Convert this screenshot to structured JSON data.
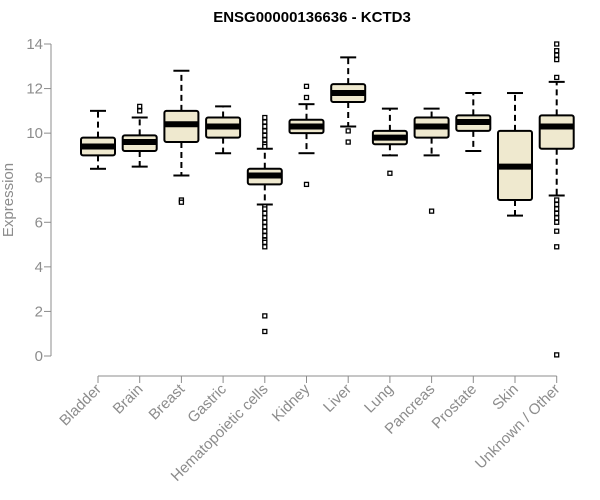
{
  "chart_data": {
    "type": "boxplot",
    "title": "ENSG00000136636 - KCTD3",
    "ylabel": "Expression",
    "xlabel": "",
    "ylim": [
      0,
      14
    ],
    "yticks": [
      0,
      2,
      4,
      6,
      8,
      10,
      12,
      14
    ],
    "grid": false,
    "legend": "none",
    "colors": {
      "box_fill": "#efe9cf",
      "box_stroke": "#000000",
      "axis": "#8c8c8c",
      "title": "#000000"
    },
    "categories": [
      "Bladder",
      "Brain",
      "Breast",
      "Gastric",
      "Hematopoietic cells",
      "Kidney",
      "Liver",
      "Lung",
      "Pancreas",
      "Prostate",
      "Skin",
      "Unknown / Other"
    ],
    "boxes": [
      {
        "category": "Bladder",
        "whisker_low": 8.4,
        "q1": 9.0,
        "median": 9.4,
        "q3": 9.8,
        "whisker_high": 11.0,
        "outliers": []
      },
      {
        "category": "Brain",
        "whisker_low": 8.5,
        "q1": 9.2,
        "median": 9.6,
        "q3": 9.9,
        "whisker_high": 10.7,
        "outliers": [
          11.0,
          11.2
        ]
      },
      {
        "category": "Breast",
        "whisker_low": 8.1,
        "q1": 9.6,
        "median": 10.4,
        "q3": 11.0,
        "whisker_high": 12.8,
        "outliers": [
          7.0,
          6.9
        ]
      },
      {
        "category": "Gastric",
        "whisker_low": 9.1,
        "q1": 9.8,
        "median": 10.3,
        "q3": 10.7,
        "whisker_high": 11.2,
        "outliers": []
      },
      {
        "category": "Hematopoietic cells",
        "whisker_low": 6.8,
        "q1": 7.7,
        "median": 8.1,
        "q3": 8.4,
        "whisker_high": 9.3,
        "outliers": [
          10.7,
          10.5,
          10.3,
          10.1,
          9.9,
          9.7,
          9.5,
          9.4,
          6.7,
          6.6,
          6.4,
          6.2,
          6.0,
          5.8,
          5.6,
          5.4,
          5.2,
          5.1,
          4.9,
          1.8,
          1.1
        ]
      },
      {
        "category": "Kidney",
        "whisker_low": 9.1,
        "q1": 10.0,
        "median": 10.3,
        "q3": 10.6,
        "whisker_high": 11.3,
        "outliers": [
          11.6,
          12.1,
          7.7
        ]
      },
      {
        "category": "Liver",
        "whisker_low": 10.3,
        "q1": 11.4,
        "median": 11.8,
        "q3": 12.2,
        "whisker_high": 13.4,
        "outliers": [
          10.1,
          9.6
        ]
      },
      {
        "category": "Lung",
        "whisker_low": 9.0,
        "q1": 9.5,
        "median": 9.8,
        "q3": 10.1,
        "whisker_high": 11.1,
        "outliers": [
          8.2
        ]
      },
      {
        "category": "Pancreas",
        "whisker_low": 9.0,
        "q1": 9.8,
        "median": 10.3,
        "q3": 10.7,
        "whisker_high": 11.1,
        "outliers": [
          6.5
        ]
      },
      {
        "category": "Prostate",
        "whisker_low": 9.2,
        "q1": 10.1,
        "median": 10.5,
        "q3": 10.8,
        "whisker_high": 11.8,
        "outliers": []
      },
      {
        "category": "Skin",
        "whisker_low": 6.3,
        "q1": 7.0,
        "median": 8.5,
        "q3": 10.1,
        "whisker_high": 11.8,
        "outliers": []
      },
      {
        "category": "Unknown / Other",
        "whisker_low": 7.2,
        "q1": 9.3,
        "median": 10.3,
        "q3": 10.8,
        "whisker_high": 12.3,
        "outliers": [
          14.0,
          13.7,
          13.5,
          13.3,
          12.5,
          7.0,
          6.8,
          6.6,
          6.4,
          6.2,
          6.0,
          5.6,
          4.9,
          0.05
        ]
      }
    ]
  }
}
